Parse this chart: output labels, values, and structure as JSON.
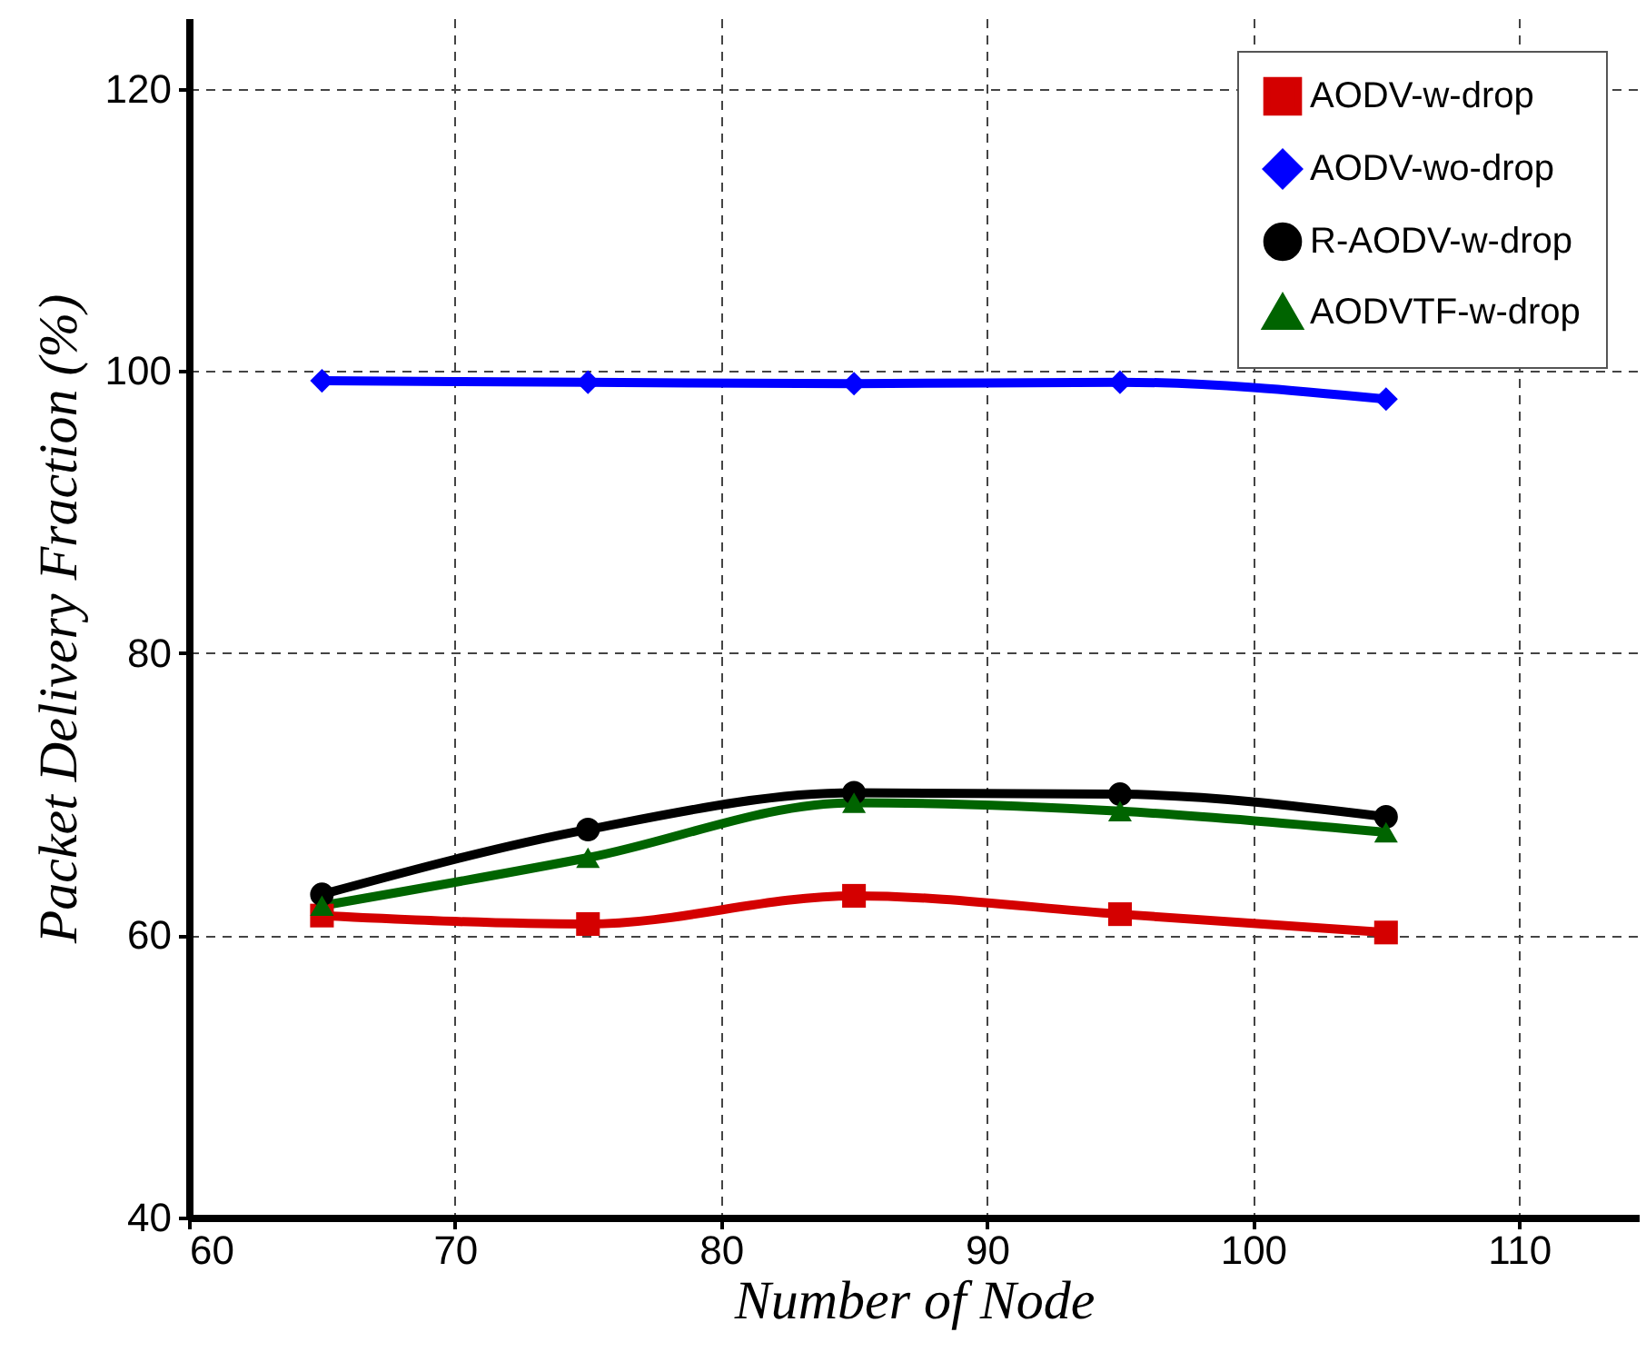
{
  "chart_data": {
    "type": "line",
    "xlabel": "Number of Node",
    "ylabel": "Packet Delivery Fraction (%)",
    "x": [
      65,
      75,
      85,
      95,
      105
    ],
    "series": [
      {
        "name": "AODV-w-drop",
        "color": "#d40000",
        "marker": "square",
        "values": [
          61.4,
          60.8,
          62.8,
          61.5,
          60.2
        ]
      },
      {
        "name": "AODV-wo-drop",
        "color": "#0000ff",
        "marker": "diamond",
        "values": [
          99.3,
          99.2,
          99.1,
          99.2,
          98.0
        ]
      },
      {
        "name": "R-AODV-w-drop",
        "color": "#000000",
        "marker": "circle",
        "values": [
          62.9,
          67.5,
          70.1,
          70.0,
          68.4
        ]
      },
      {
        "name": "AODVTF-w-drop",
        "color": "#006400",
        "marker": "triangle",
        "values": [
          62.1,
          65.5,
          69.4,
          68.8,
          67.3
        ]
      }
    ],
    "xlim": [
      60,
      114.5
    ],
    "xticks": [
      60,
      70,
      80,
      90,
      100,
      110
    ],
    "ylim": [
      40,
      125
    ],
    "yticks": [
      40,
      60,
      80,
      100,
      120
    ],
    "grid": true,
    "legend": "top right",
    "line_style": "solid"
  }
}
